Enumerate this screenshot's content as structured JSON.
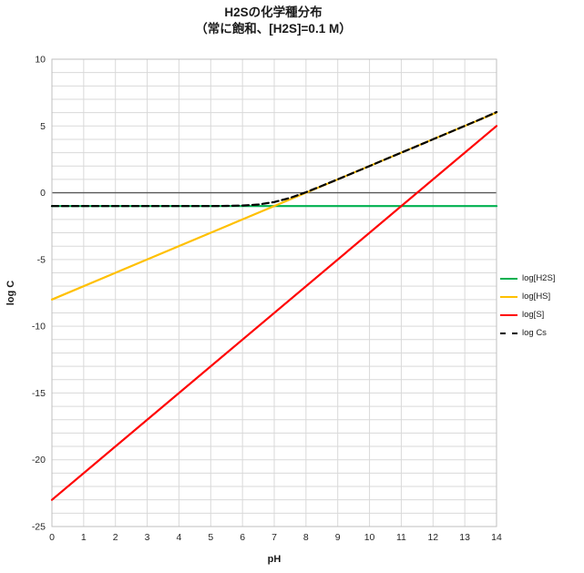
{
  "title": "H2Sの化学種分布",
  "subtitle": "（常に飽和、[H2S]=0.1 M）",
  "axes": {
    "x_label": "pH",
    "y_label": "log C"
  },
  "colors": {
    "grid": "#d9d9d9",
    "zero_line": "#595959",
    "plot_border": "#bfbfbf",
    "tick_text": "#262626",
    "green": "#00B050",
    "gold": "#FFC000",
    "red": "#FF0000",
    "black": "#000000"
  },
  "chart_data": {
    "type": "line",
    "title": "H2Sの化学種分布",
    "subtitle": "（常に飽和、[H2S]=0.1 M）",
    "xlabel": "pH",
    "ylabel": "log C",
    "xlim": [
      0,
      14
    ],
    "ylim": [
      -25,
      10
    ],
    "x_ticks": [
      0,
      1,
      2,
      3,
      4,
      5,
      6,
      7,
      8,
      9,
      10,
      11,
      12,
      13,
      14
    ],
    "y_ticks": [
      -25,
      -20,
      -15,
      -10,
      -5,
      0,
      5,
      10
    ],
    "grid": {
      "x_step": 1,
      "y_step": 1,
      "visible": true
    },
    "legend_position": "right",
    "series": [
      {
        "name": "log[H2S]",
        "color": "#00B050",
        "dash": null,
        "x": [
          0,
          14
        ],
        "y": [
          -1,
          -1
        ]
      },
      {
        "name": "log[HS]",
        "color": "#FFC000",
        "dash": null,
        "x": [
          0,
          14
        ],
        "y": [
          -8,
          6
        ]
      },
      {
        "name": "log[S]",
        "color": "#FF0000",
        "dash": null,
        "x": [
          0,
          14
        ],
        "y": [
          -23,
          5
        ]
      },
      {
        "name": "log Cs",
        "color": "#000000",
        "dash": "7,4",
        "x": [
          0,
          0.5,
          1,
          1.5,
          2,
          2.5,
          3,
          3.5,
          4,
          4.5,
          5,
          5.5,
          6,
          6.5,
          7,
          7.5,
          8,
          8.5,
          9,
          9.5,
          10,
          10.5,
          11,
          11.5,
          12,
          12.5,
          13,
          13.5,
          14
        ],
        "y": [
          -1.0,
          -1.0,
          -1.0,
          -1.0,
          -1.0,
          -1.0,
          -1.0,
          -0.9999,
          -0.9996,
          -0.9986,
          -0.9957,
          -0.9865,
          -0.9586,
          -0.8807,
          -0.699,
          -0.3807,
          0.0414,
          0.5136,
          1.0043,
          1.5014,
          2.0004,
          2.5001,
          3.0001,
          3.5001,
          4.0004,
          4.5014,
          5.0043,
          5.5136,
          6.0414
        ]
      }
    ]
  }
}
